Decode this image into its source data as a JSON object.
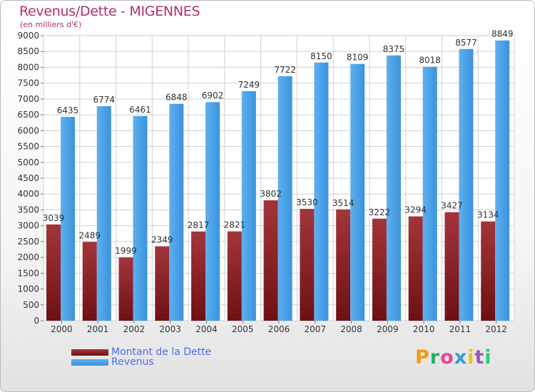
{
  "header": {
    "title": "Revenus/Dette - MIGENNES",
    "subtitle": "(en milliers d'€)"
  },
  "legend": {
    "debt_label": "Montant de la Dette",
    "revenue_label": "Revenus"
  },
  "brand": {
    "letters": [
      "P",
      "r",
      "o",
      "x",
      "i",
      "t",
      "i"
    ],
    "colors": [
      "#f39c12",
      "#27ae60",
      "#e84393",
      "#3498db",
      "#f1c40f",
      "#9b59b6",
      "#2ecc71"
    ]
  },
  "colors": {
    "debt": "#6e1114",
    "debt_light": "#a3353a",
    "revenue": "#3a93dc",
    "revenue_light": "#5eb0f0",
    "grid": "#d0d0d0",
    "axis_text": "#333333"
  },
  "chart_data": {
    "type": "bar",
    "title": "Revenus/Dette - MIGENNES",
    "ylabel": "(en milliers d'€)",
    "categories": [
      "2000",
      "2001",
      "2002",
      "2003",
      "2004",
      "2005",
      "2006",
      "2007",
      "2008",
      "2009",
      "2010",
      "2011",
      "2012"
    ],
    "series": [
      {
        "name": "Montant de la Dette",
        "values": [
          3039,
          2489,
          1999,
          2349,
          2817,
          2821,
          3802,
          3530,
          3514,
          3222,
          3294,
          3427,
          3134
        ]
      },
      {
        "name": "Revenus",
        "values": [
          6435,
          6774,
          6461,
          6848,
          6902,
          7249,
          7722,
          8150,
          8109,
          8375,
          8018,
          8577,
          8849
        ]
      }
    ],
    "ylim": [
      0,
      9000
    ],
    "ytick_step": 500,
    "grid": true,
    "legend_position": "bottom-left",
    "data_labels_debt": [
      "3039",
      "2489",
      "1999",
      "2349",
      "2817",
      "2821",
      "3802",
      "3530",
      "3514",
      "3222",
      "3294",
      "3427",
      "3134"
    ],
    "data_labels_revenue": [
      "6435",
      "6774",
      "6461",
      "6848",
      "6902",
      "7249",
      "7722",
      "8150",
      "8109",
      "8375",
      "8018",
      "8577",
      "8849"
    ]
  }
}
